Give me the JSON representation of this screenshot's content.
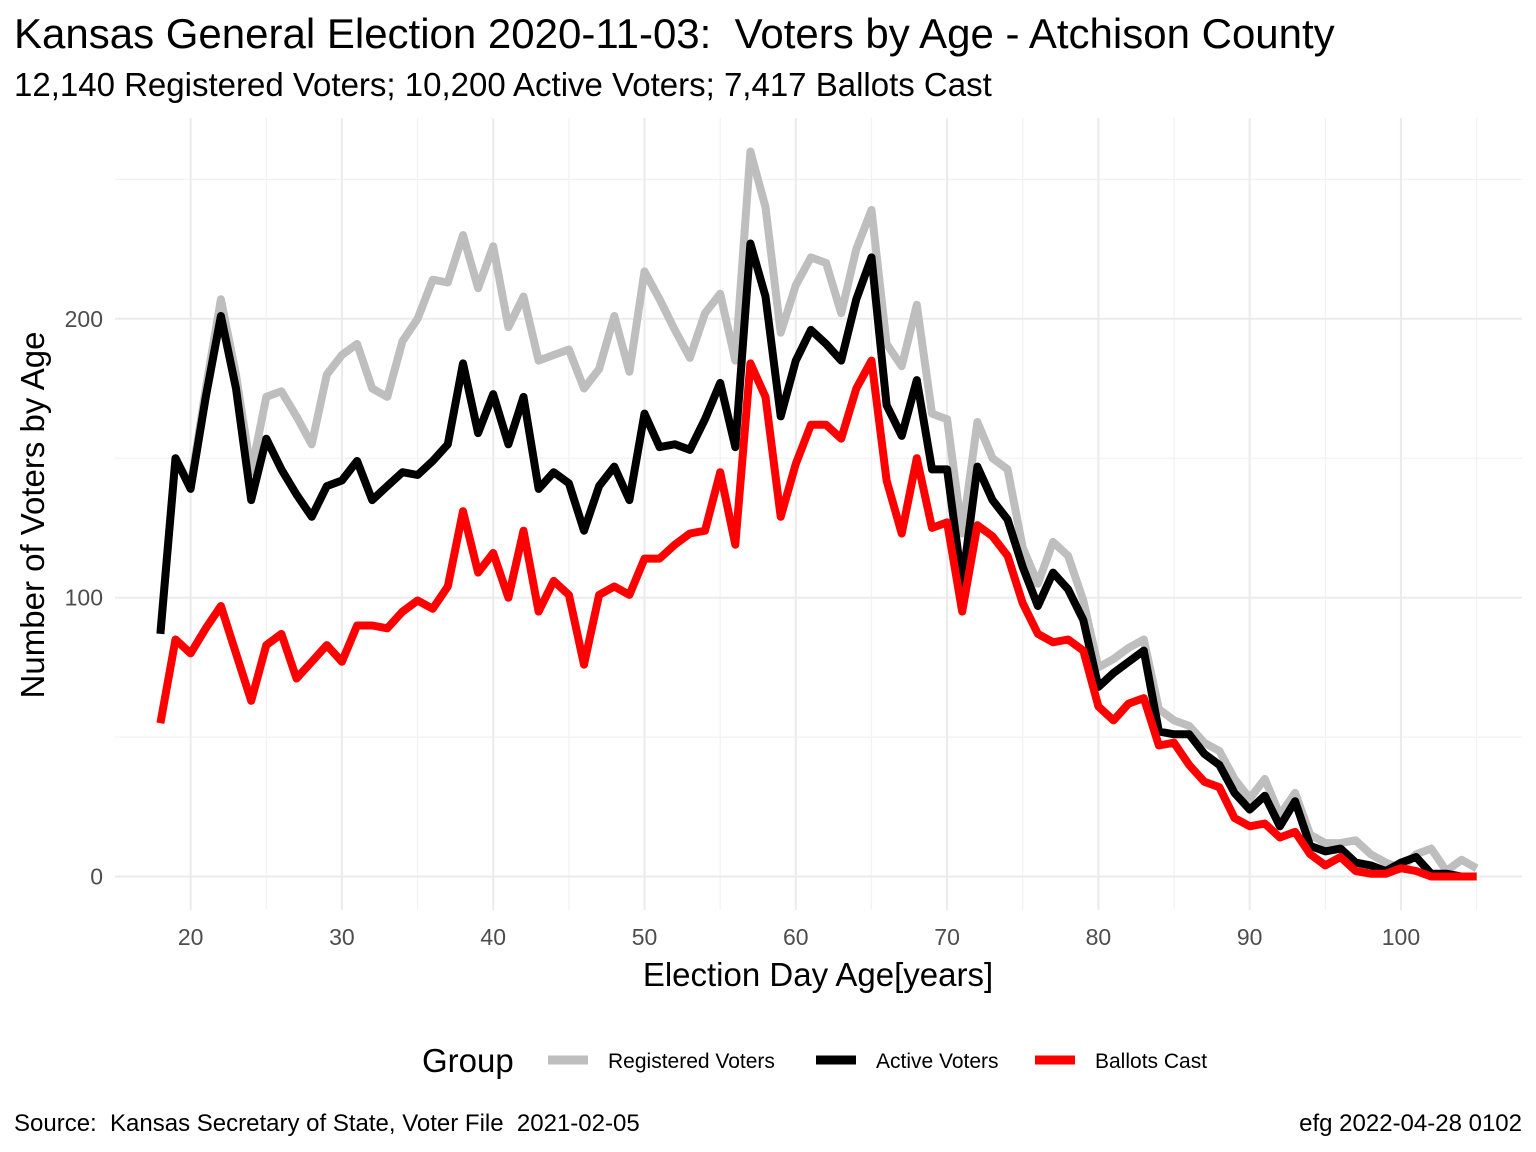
{
  "chart_data": {
    "type": "line",
    "title": "Kansas General Election 2020-11-03:  Voters by Age - Atchison County",
    "subtitle": "12,140 Registered Voters; 10,200 Active Voters; 7,417 Ballots Cast",
    "xlabel": "Election Day Age[years]",
    "ylabel": "Number of Voters by Age",
    "xlim": [
      15,
      108
    ],
    "ylim": [
      -12,
      272
    ],
    "x_ticks": [
      20,
      30,
      40,
      50,
      60,
      70,
      80,
      90,
      100
    ],
    "y_ticks": [
      0,
      100,
      200
    ],
    "grid": true,
    "legend": {
      "title": "Group",
      "position": "bottom"
    },
    "caption_left": "Source:  Kansas Secretary of State, Voter File  2021-02-05",
    "caption_right": "efg 2022-04-28 0102",
    "x": [
      18,
      19,
      20,
      21,
      22,
      23,
      24,
      25,
      26,
      27,
      28,
      29,
      30,
      31,
      32,
      33,
      34,
      35,
      36,
      37,
      38,
      39,
      40,
      41,
      42,
      43,
      44,
      45,
      46,
      47,
      48,
      49,
      50,
      51,
      52,
      53,
      54,
      55,
      56,
      57,
      58,
      59,
      60,
      61,
      62,
      63,
      64,
      65,
      66,
      67,
      68,
      69,
      70,
      71,
      72,
      73,
      74,
      75,
      76,
      77,
      78,
      79,
      80,
      81,
      82,
      83,
      84,
      85,
      86,
      87,
      88,
      89,
      90,
      91,
      92,
      93,
      94,
      95,
      96,
      97,
      98,
      99,
      100,
      101,
      102,
      103,
      104,
      105
    ],
    "series": [
      {
        "name": "Registered Voters",
        "color": "#bebebe",
        "values": [
          88,
          150,
          140,
          175,
          207,
          180,
          145,
          172,
          174,
          165,
          155,
          180,
          187,
          191,
          175,
          172,
          192,
          200,
          214,
          213,
          230,
          211,
          226,
          197,
          208,
          185,
          187,
          189,
          175,
          182,
          201,
          181,
          217,
          207,
          196,
          186,
          202,
          209,
          185,
          260,
          240,
          195,
          212,
          222,
          220,
          202,
          225,
          239,
          191,
          183,
          205,
          166,
          164,
          123,
          163,
          150,
          146,
          118,
          105,
          120,
          115,
          99,
          75,
          78,
          82,
          85,
          60,
          56,
          54,
          48,
          45,
          35,
          28,
          35,
          22,
          30,
          15,
          12,
          12,
          13,
          8,
          5,
          3,
          8,
          10,
          2,
          6,
          3
        ]
      },
      {
        "name": "Active Voters",
        "color": "#000000",
        "values": [
          87,
          150,
          139,
          172,
          201,
          175,
          135,
          157,
          146,
          137,
          129,
          140,
          142,
          149,
          135,
          140,
          145,
          144,
          149,
          155,
          184,
          159,
          173,
          155,
          172,
          139,
          145,
          141,
          124,
          140,
          147,
          135,
          166,
          154,
          155,
          153,
          164,
          177,
          154,
          227,
          208,
          165,
          185,
          196,
          191,
          185,
          207,
          222,
          169,
          158,
          178,
          146,
          146,
          105,
          147,
          135,
          128,
          111,
          97,
          109,
          103,
          92,
          68,
          73,
          77,
          81,
          52,
          51,
          51,
          44,
          40,
          30,
          24,
          29,
          18,
          27,
          11,
          9,
          10,
          5,
          4,
          2,
          5,
          7,
          1,
          1,
          0,
          0
        ]
      },
      {
        "name": "Ballots Cast",
        "color": "#ff0000",
        "values": [
          55,
          85,
          80,
          89,
          97,
          80,
          63,
          83,
          87,
          71,
          77,
          83,
          77,
          90,
          90,
          89,
          95,
          99,
          96,
          104,
          131,
          109,
          116,
          100,
          124,
          95,
          106,
          101,
          76,
          101,
          104,
          101,
          114,
          114,
          119,
          123,
          124,
          145,
          119,
          184,
          172,
          129,
          148,
          162,
          162,
          157,
          175,
          185,
          142,
          123,
          150,
          125,
          127,
          95,
          126,
          122,
          115,
          98,
          87,
          84,
          85,
          81,
          61,
          56,
          62,
          64,
          47,
          48,
          40,
          34,
          32,
          21,
          18,
          19,
          14,
          16,
          8,
          4,
          7,
          2,
          1,
          1,
          3,
          2,
          0,
          0,
          0,
          0
        ]
      }
    ]
  }
}
